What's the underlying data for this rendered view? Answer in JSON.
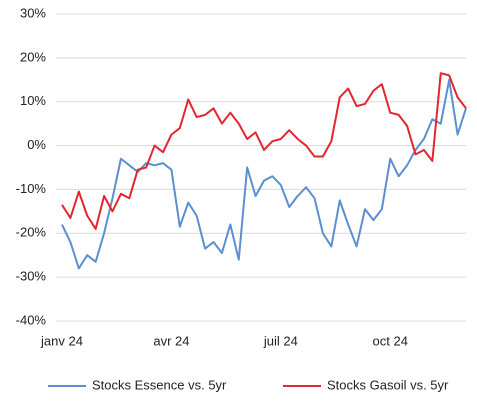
{
  "chart_data": {
    "type": "line",
    "categories": [
      "janv 24",
      null,
      null,
      null,
      null,
      null,
      null,
      null,
      null,
      null,
      null,
      null,
      null,
      "avr 24",
      null,
      null,
      null,
      null,
      null,
      null,
      null,
      null,
      null,
      null,
      null,
      null,
      "juil 24",
      null,
      null,
      null,
      null,
      null,
      null,
      null,
      null,
      null,
      null,
      null,
      null,
      "oct 24",
      null,
      null,
      null,
      null,
      null,
      null,
      null,
      null,
      null
    ],
    "series": [
      {
        "name": "Stocks Essence vs. 5yr",
        "color": "#5b8fd0",
        "values": [
          -18,
          -22,
          -28,
          -25,
          -26.5,
          -20,
          -12,
          -3,
          -4.5,
          -6,
          -4,
          -4.5,
          -4,
          -5.5,
          -18.5,
          -13,
          -16,
          -23.5,
          -22,
          -24.5,
          -18,
          -26,
          -5,
          -11.5,
          -8,
          -7,
          -9,
          -14,
          -11.5,
          -9.5,
          -12,
          -20,
          -23,
          -12.5,
          -18,
          -23,
          -14.5,
          -17,
          -14.5,
          -3,
          -7,
          -4.5,
          -1,
          1.5,
          6,
          5,
          15,
          2.5,
          8.5
        ]
      },
      {
        "name": "Stocks Gasoil vs. 5yr",
        "color": "#e3262f",
        "values": [
          -13.5,
          -16.5,
          -10.5,
          -16,
          -19,
          -11.5,
          -15,
          -11,
          -12,
          -5.5,
          -5,
          0,
          -1.5,
          2.5,
          4,
          10.5,
          6.5,
          7,
          8.5,
          5,
          7.5,
          5,
          1.5,
          3,
          -1,
          1,
          1.5,
          3.5,
          1.5,
          0,
          -2.5,
          -2.5,
          1,
          11,
          13,
          9,
          9.5,
          12.5,
          14,
          7.5,
          7,
          4.5,
          -2,
          -1,
          -3.5,
          16.5,
          16,
          11,
          8.5
        ]
      }
    ],
    "ylim": [
      -40,
      30
    ],
    "yticks": [
      {
        "value": -40,
        "label": "-40%"
      },
      {
        "value": -30,
        "label": "-30%"
      },
      {
        "value": -20,
        "label": "-20%"
      },
      {
        "value": -10,
        "label": "-10%"
      },
      {
        "value": 0,
        "label": "0%"
      },
      {
        "value": 10,
        "label": "10%"
      },
      {
        "value": 20,
        "label": "20%"
      },
      {
        "value": 30,
        "label": "30%"
      }
    ],
    "grid": true,
    "legend": "bottom"
  }
}
